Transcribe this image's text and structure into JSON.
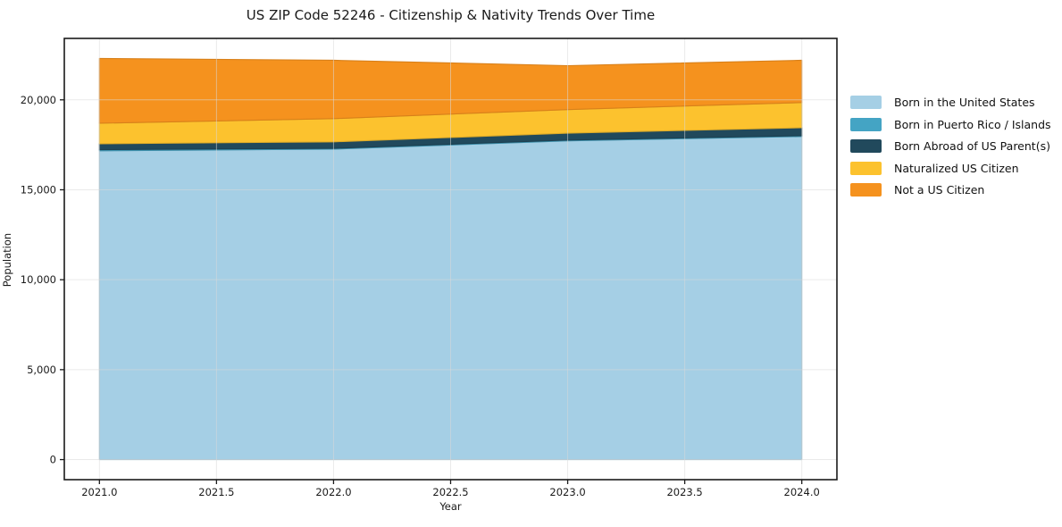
{
  "chart_data": {
    "type": "area",
    "stacked": true,
    "title": "US ZIP Code 52246 - Citizenship & Nativity Trends Over Time",
    "xlabel": "Year",
    "ylabel": "Population",
    "x": [
      2021,
      2022,
      2023,
      2024
    ],
    "series": [
      {
        "name": "Born in the United States",
        "color": "#a5cfe5",
        "values": [
          17170,
          17260,
          17720,
          17960
        ]
      },
      {
        "name": "Born in Puerto Rico / Islands",
        "color": "#44a4c4",
        "values": [
          60,
          45,
          40,
          45
        ]
      },
      {
        "name": "Born Abroad of US Parent(s)",
        "color": "#21495c",
        "values": [
          330,
          360,
          390,
          445
        ]
      },
      {
        "name": "Naturalized US Citizen",
        "color": "#fcc22e",
        "values": [
          1140,
          1290,
          1310,
          1400
        ]
      },
      {
        "name": "Not a US Citizen",
        "color": "#f5921e",
        "values": [
          3600,
          3245,
          2440,
          2350
        ]
      }
    ],
    "totals": [
      22300,
      22200,
      21900,
      22200
    ],
    "xlim": [
      2020.85,
      2024.15
    ],
    "ylim": [
      -1115,
      23415
    ],
    "xticks": {
      "values": [
        2021.0,
        2021.5,
        2022.0,
        2022.5,
        2023.0,
        2023.5,
        2024.0
      ],
      "labels": [
        "2021.0",
        "2021.5",
        "2022.0",
        "2022.5",
        "2023.0",
        "2023.5",
        "2024.0"
      ]
    },
    "yticks": {
      "values": [
        0,
        5000,
        10000,
        15000,
        20000
      ],
      "labels": [
        "0",
        "5,000",
        "10,000",
        "15,000",
        "20,000"
      ]
    },
    "grid": true,
    "legend_position": "right-outside",
    "colors": {
      "background": "#ffffff",
      "spine": "#1a1a1a",
      "gridline": "#d9d9d9",
      "tick_text": "#1a1a1a"
    }
  }
}
